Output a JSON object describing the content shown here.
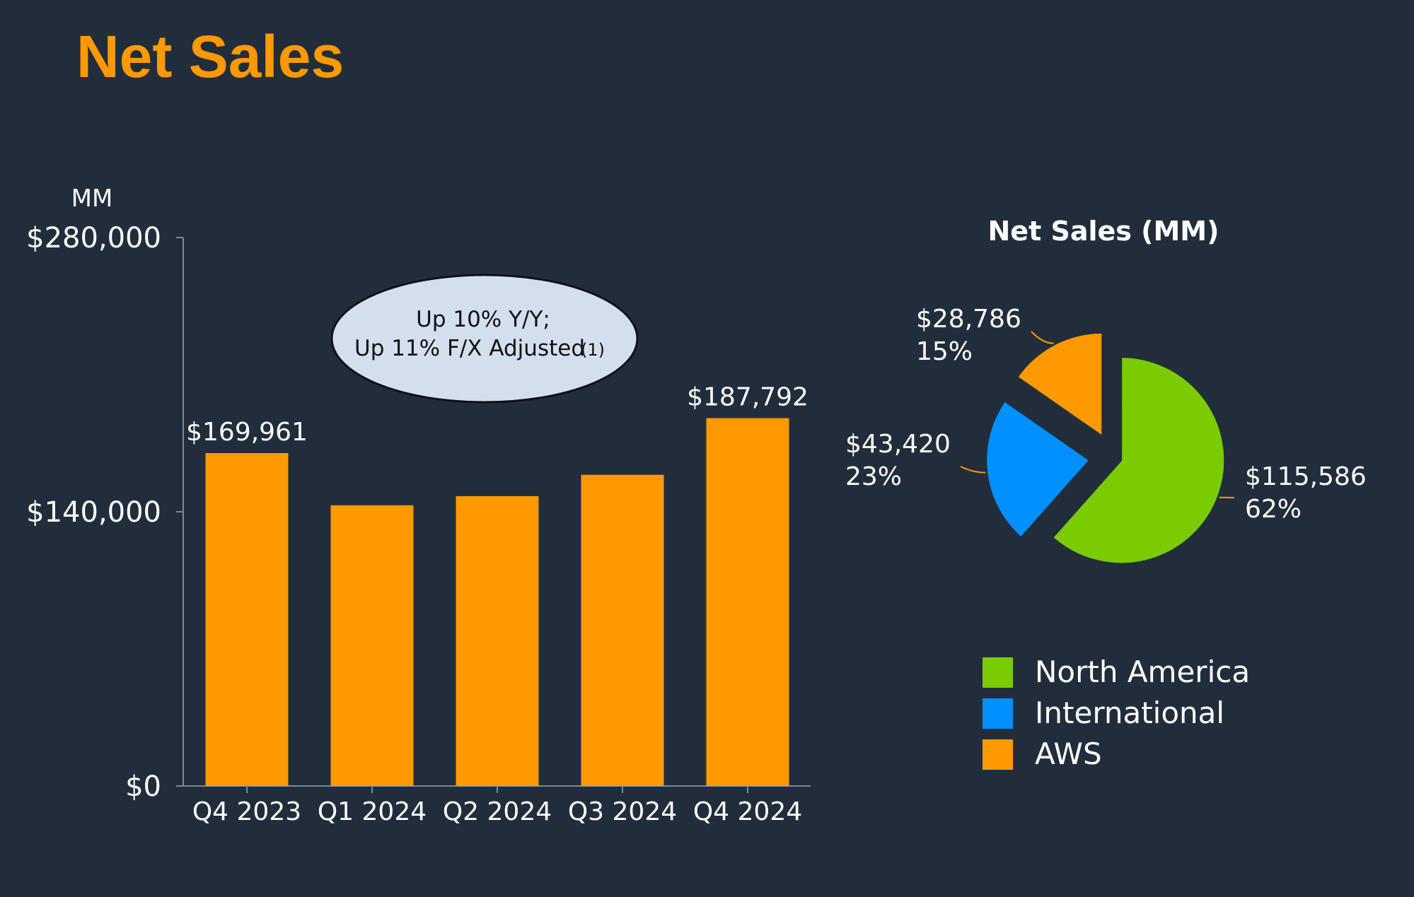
{
  "title": "Net Sales",
  "colors": {
    "background": "#222d3c",
    "title": "#ff9900",
    "bar": "#ff9900",
    "north_america": "#7acc00",
    "international": "#0090ff",
    "aws": "#ff9900",
    "callout_fill": "#d4dfee"
  },
  "chart_data": [
    {
      "type": "bar",
      "unit_label": "MM",
      "categories": [
        "Q4 2023",
        "Q1 2024",
        "Q2 2024",
        "Q3 2024",
        "Q4 2024"
      ],
      "values": [
        169961,
        143313,
        147977,
        158877,
        187792
      ],
      "data_labels": [
        "$169,961",
        "",
        "",
        "",
        "$187,792"
      ],
      "ylim": [
        0,
        280000
      ],
      "yticks": [
        0,
        140000,
        280000
      ],
      "ytick_labels": [
        "$0",
        "$140,000",
        "$280,000"
      ],
      "callout": {
        "line1": "Up 10% Y/Y;",
        "line2": "Up 11% F/X Adjusted",
        "footnote": "(1)"
      }
    },
    {
      "type": "pie",
      "title": "Net Sales (MM)",
      "slices": [
        {
          "name": "North America",
          "value": 115586,
          "value_label": "$115,586",
          "pct_label": "62%"
        },
        {
          "name": "International",
          "value": 43420,
          "value_label": "$43,420",
          "pct_label": "23%"
        },
        {
          "name": "AWS",
          "value": 28786,
          "value_label": "$28,786",
          "pct_label": "15%"
        }
      ],
      "legend": [
        "North America",
        "International",
        "AWS"
      ]
    }
  ]
}
